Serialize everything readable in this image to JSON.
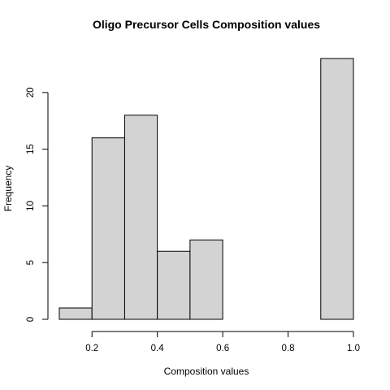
{
  "chart_data": {
    "type": "bar",
    "title": "Oligo Precursor Cells Composition values",
    "xlabel": "Composition values",
    "ylabel": "Frequency",
    "bins": [
      {
        "start": 0.1,
        "end": 0.2,
        "count": 1
      },
      {
        "start": 0.2,
        "end": 0.3,
        "count": 16
      },
      {
        "start": 0.3,
        "end": 0.4,
        "count": 18
      },
      {
        "start": 0.4,
        "end": 0.5,
        "count": 6
      },
      {
        "start": 0.5,
        "end": 0.6,
        "count": 7
      },
      {
        "start": 0.6,
        "end": 0.7,
        "count": 0
      },
      {
        "start": 0.7,
        "end": 0.8,
        "count": 0
      },
      {
        "start": 0.8,
        "end": 0.9,
        "count": 0
      },
      {
        "start": 0.9,
        "end": 1.0,
        "count": 23
      }
    ],
    "xlim": [
      0.1,
      1.0
    ],
    "ylim": [
      0,
      23
    ],
    "xticks": [
      "0.2",
      "0.4",
      "0.6",
      "0.8",
      "1.0"
    ],
    "xtick_values": [
      0.2,
      0.4,
      0.6,
      0.8,
      1.0
    ],
    "yticks": [
      "0",
      "5",
      "10",
      "15",
      "20"
    ],
    "ytick_values": [
      0,
      5,
      10,
      15,
      20
    ],
    "bar_color": "#d3d3d3",
    "grid": false,
    "legend": "none"
  }
}
